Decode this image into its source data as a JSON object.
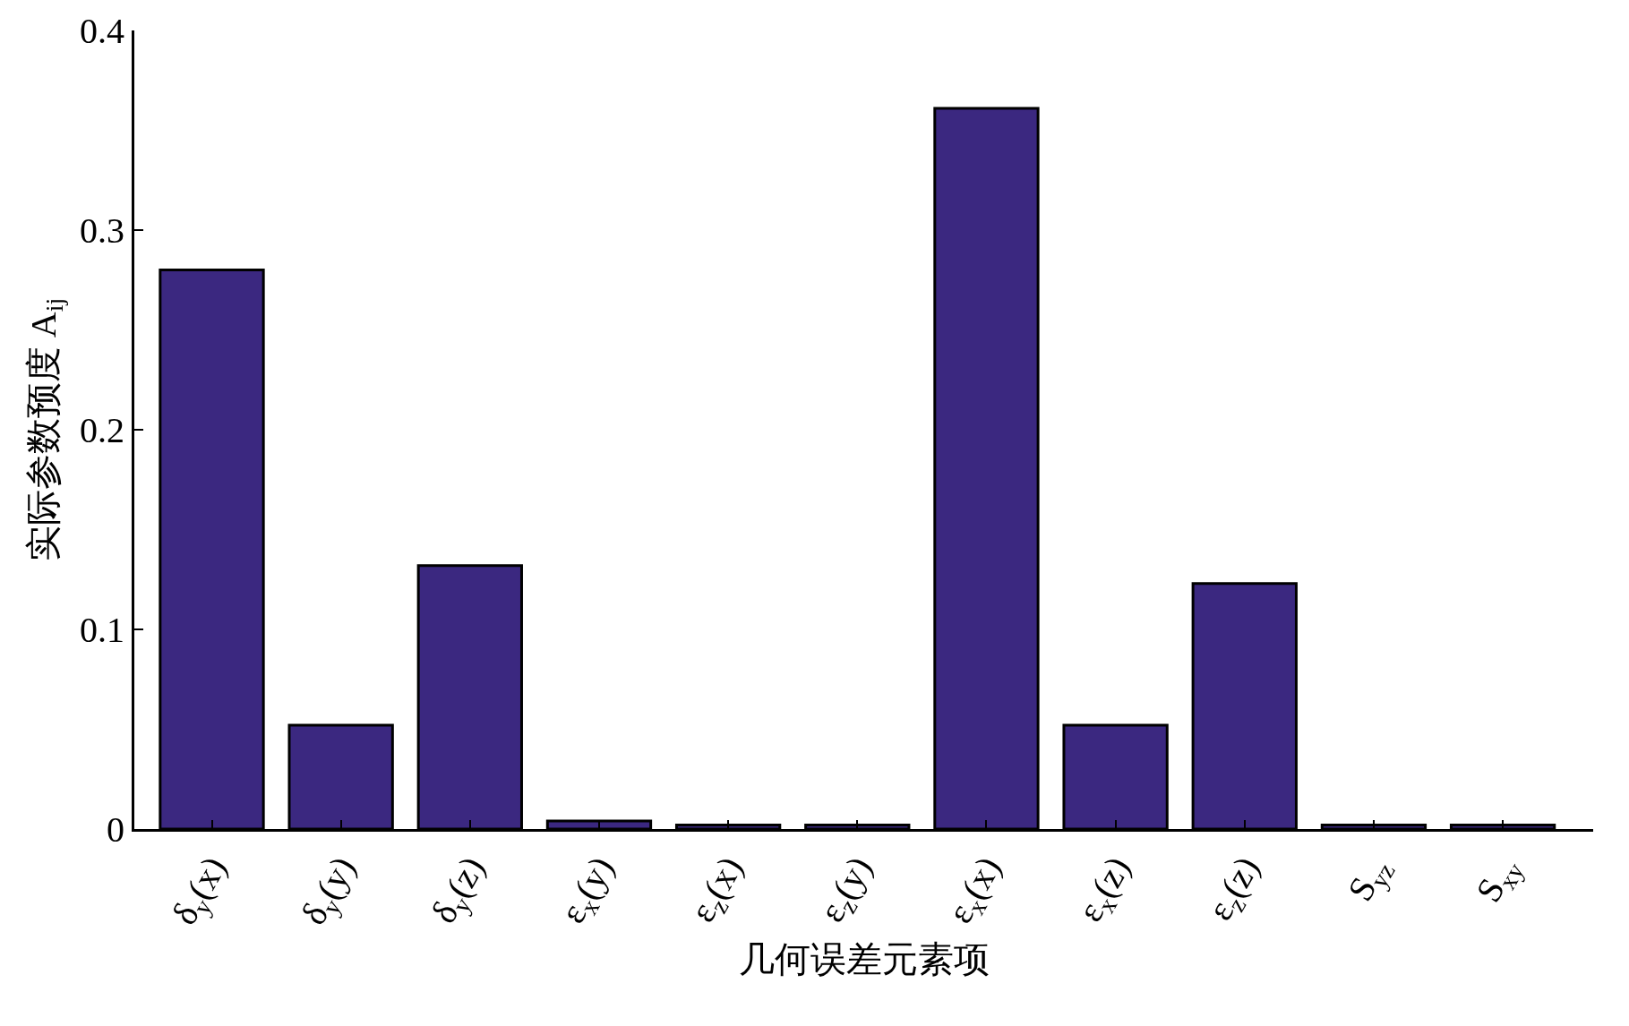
{
  "chart_data": {
    "type": "bar",
    "xlabel": "几何误差元素项",
    "ylabel": "实际参数预度 A$_{ij}$",
    "categories": [
      "δ$_{y}$(x)",
      "δ$_{y}$(y)",
      "δ$_{y}$(z)",
      "ε$_{x}$(y)",
      "ε$_{z}$(x)",
      "ε$_{z}$(y)",
      "ε$_{x}$(x)",
      "ε$_{x}$(z)",
      "ε$_{z}$(z)",
      "S$_{yz}$",
      "S$_{xy}$"
    ],
    "values": [
      0.28,
      0.052,
      0.132,
      0.004,
      0.002,
      0.002,
      0.361,
      0.052,
      0.123,
      0.002,
      0.002
    ],
    "color": "#3b2880",
    "ylim": [
      0,
      0.4
    ],
    "yticks": [
      0,
      0.1,
      0.2,
      0.3,
      0.4
    ]
  }
}
